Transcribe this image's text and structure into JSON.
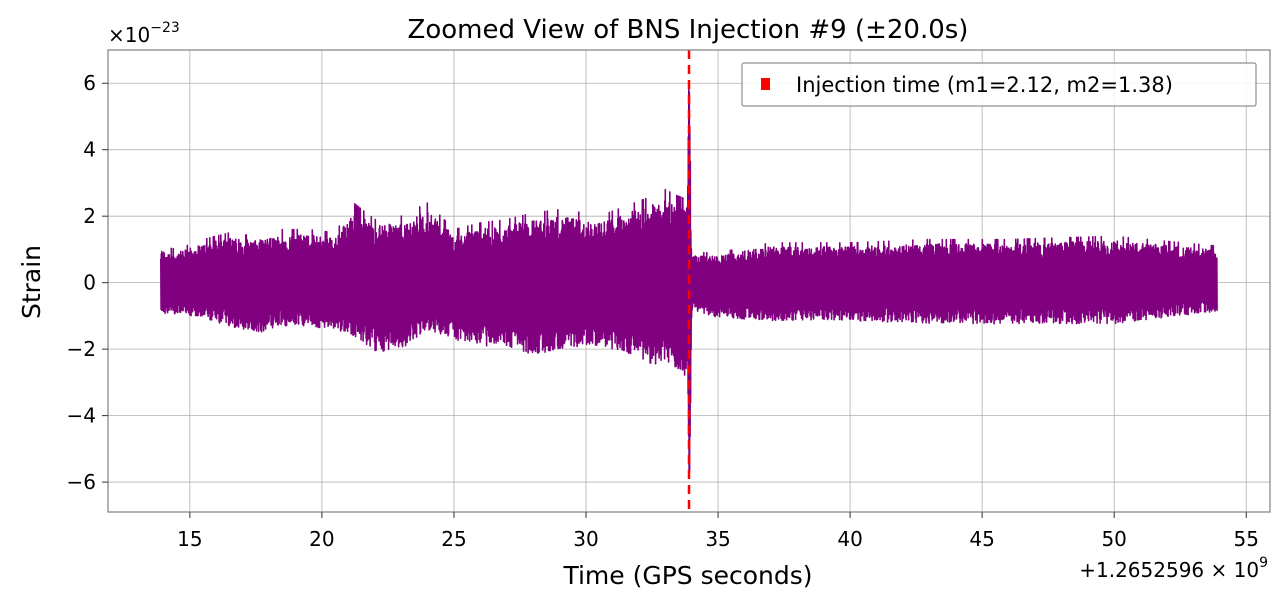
{
  "chart_data": {
    "type": "line",
    "title": "Zoomed View of BNS Injection #9 (±20.0s)",
    "xlabel": "Time (GPS seconds)",
    "ylabel": "Strain",
    "y_scale_label_base": "×10",
    "y_scale_label_exp": "−23",
    "x_offset_label_base": "+1.2652596 × 10",
    "x_offset_label_exp": "9",
    "xlim": [
      11.9,
      55.9
    ],
    "ylim": [
      -6.9,
      7.0
    ],
    "x_ticks": [
      15,
      20,
      25,
      30,
      35,
      40,
      45,
      50,
      55
    ],
    "x_tick_labels": [
      "15",
      "20",
      "25",
      "30",
      "35",
      "40",
      "45",
      "50",
      "55"
    ],
    "y_ticks": [
      -6,
      -4,
      -2,
      0,
      2,
      4,
      6
    ],
    "y_tick_labels": [
      "−6",
      "−4",
      "−2",
      "0",
      "2",
      "4",
      "6"
    ],
    "grid": true,
    "legend_position": "top-right",
    "legend": [
      {
        "label": "Injection time (m1=2.12, m2=1.38)",
        "color": "#ff0000",
        "marker": "square"
      }
    ],
    "injection_time": 33.9,
    "series": [
      {
        "name": "strain",
        "color": "#800080",
        "x_start": 13.9,
        "x_end": 53.9,
        "envelope": {
          "x": [
            13.9,
            14.5,
            15.5,
            16.5,
            17.5,
            18.5,
            19.5,
            20.5,
            21.2,
            22.0,
            23.0,
            24.0,
            25.0,
            26.0,
            27.0,
            28.0,
            29.0,
            30.0,
            30.5,
            31.5,
            32.5,
            33.0,
            33.5,
            33.85,
            33.9,
            34.0,
            35.0,
            37.0,
            40.0,
            43.0,
            46.0,
            50.0,
            53.9
          ],
          "upper": [
            1.1,
            1.0,
            1.3,
            1.5,
            1.4,
            1.6,
            1.6,
            1.5,
            2.4,
            1.9,
            2.0,
            2.4,
            1.6,
            1.8,
            1.9,
            2.1,
            2.2,
            2.1,
            2.0,
            2.3,
            2.6,
            2.8,
            2.6,
            2.5,
            6.4,
            0.9,
            0.9,
            1.2,
            1.2,
            1.3,
            1.3,
            1.4,
            1.1
          ],
          "lower": [
            -1.0,
            -1.0,
            -1.1,
            -1.4,
            -1.6,
            -1.4,
            -1.4,
            -1.5,
            -1.7,
            -2.2,
            -2.1,
            -1.5,
            -1.8,
            -2.0,
            -2.0,
            -2.3,
            -2.1,
            -2.0,
            -2.0,
            -2.2,
            -2.6,
            -2.5,
            -2.8,
            -3.0,
            -6.3,
            -0.9,
            -1.1,
            -1.2,
            -1.2,
            -1.3,
            -1.3,
            -1.3,
            -0.9
          ]
        }
      }
    ]
  }
}
